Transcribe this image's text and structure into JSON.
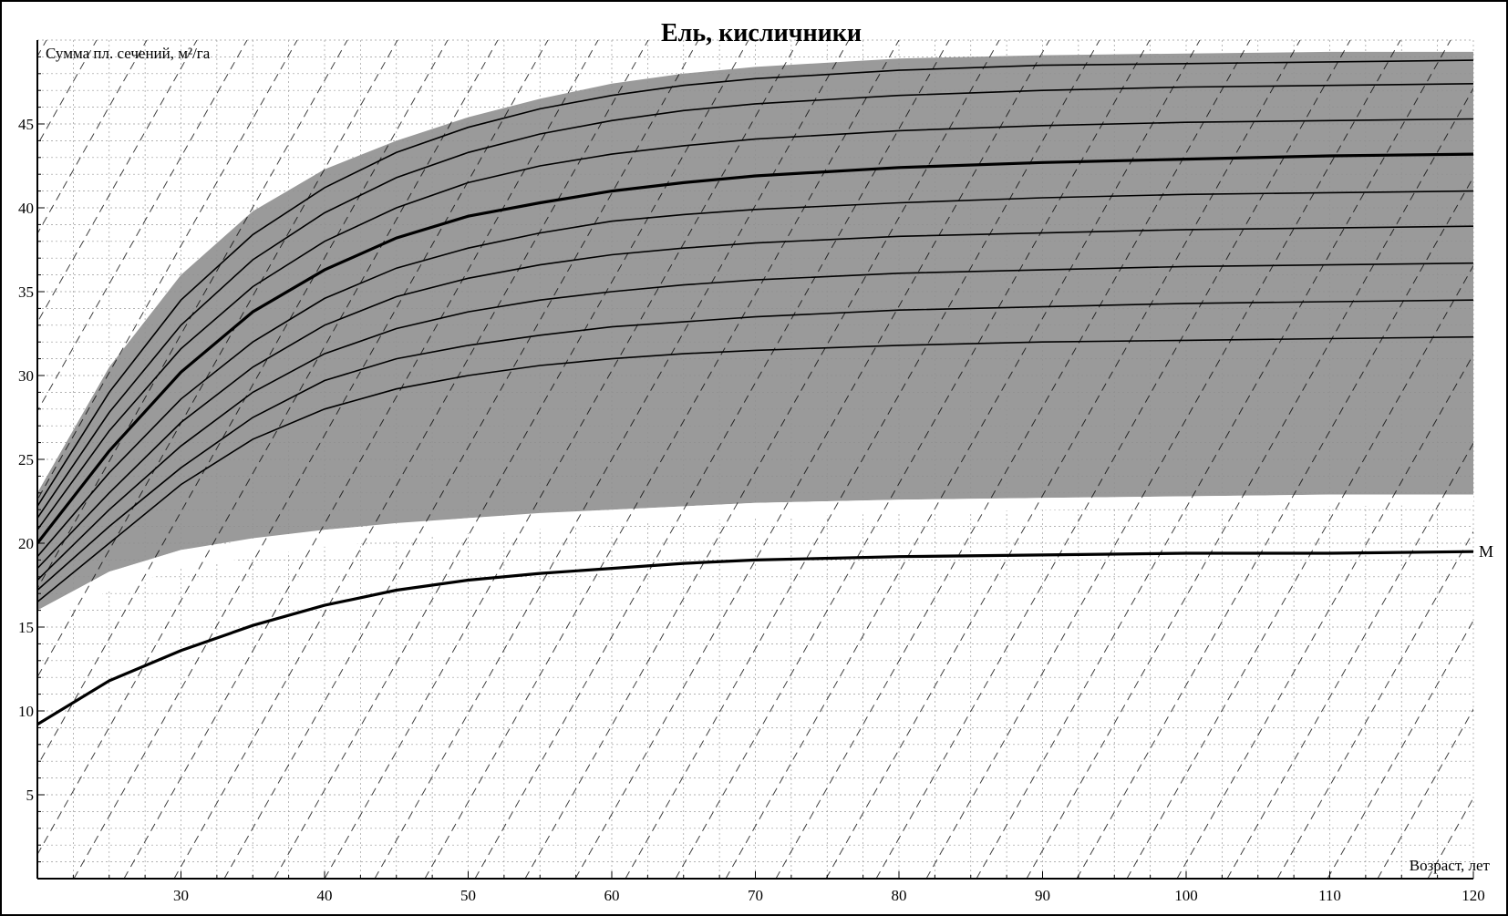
{
  "chart_data": {
    "type": "line",
    "title": "Ель, кисличники",
    "xlabel": "Возраст, лет",
    "ylabel": "Сумма пл. сечений, м²/га",
    "xlim": [
      20,
      120
    ],
    "ylim": [
      0,
      50
    ],
    "x_ticks": [
      30,
      40,
      50,
      60,
      70,
      80,
      90,
      100,
      110,
      120
    ],
    "y_ticks": [
      5,
      10,
      15,
      20,
      25,
      30,
      35,
      40,
      45
    ],
    "grid": "on",
    "colors": {
      "band": "#8f8f8f",
      "line": "#000000",
      "grid": "#9a9a9a",
      "background": "#ffffff"
    },
    "band": {
      "x": [
        20,
        25,
        30,
        35,
        40,
        45,
        50,
        55,
        60,
        65,
        70,
        80,
        90,
        100,
        110,
        120
      ],
      "upper": [
        23.0,
        30.5,
        36.0,
        39.8,
        42.3,
        44.0,
        45.4,
        46.5,
        47.4,
        48.0,
        48.4,
        48.9,
        49.1,
        49.2,
        49.3,
        49.3
      ],
      "lower": [
        16.0,
        18.3,
        19.6,
        20.3,
        20.8,
        21.2,
        21.5,
        21.8,
        22.0,
        22.2,
        22.4,
        22.6,
        22.7,
        22.8,
        22.9,
        22.9
      ]
    },
    "minimum_zone": {
      "x": [
        20,
        25,
        30,
        40,
        50,
        60,
        70,
        80,
        90,
        100,
        110,
        120
      ],
      "upper": [
        16.0,
        18.3,
        19.6,
        20.8,
        21.5,
        22.0,
        22.4,
        22.6,
        22.7,
        22.8,
        22.9,
        22.9
      ],
      "lower": [
        15.0,
        17.2,
        18.5,
        19.8,
        20.6,
        21.1,
        21.5,
        21.8,
        22.0,
        22.1,
        22.2,
        22.3
      ]
    },
    "series": [
      {
        "x": [
          20,
          25,
          30,
          35,
          40,
          45,
          50,
          55,
          60,
          65,
          70,
          80,
          90,
          100,
          110,
          120
        ],
        "values": [
          9.2,
          11.8,
          13.6,
          15.1,
          16.3,
          17.2,
          17.8,
          18.2,
          18.5,
          18.8,
          19.0,
          19.2,
          19.3,
          19.4,
          19.4,
          19.5
        ],
        "style": "bold",
        "end_label": "M"
      },
      {
        "x": [
          20,
          25,
          30,
          35,
          40,
          45,
          50,
          55,
          60,
          65,
          70,
          80,
          90,
          100,
          110,
          120
        ],
        "values": [
          16.5,
          20.0,
          23.5,
          26.2,
          28.0,
          29.2,
          30.0,
          30.6,
          31.0,
          31.3,
          31.5,
          31.8,
          32.0,
          32.1,
          32.2,
          32.3
        ],
        "style": "thin"
      },
      {
        "x": [
          20,
          25,
          30,
          35,
          40,
          45,
          50,
          55,
          60,
          65,
          70,
          80,
          90,
          100,
          110,
          120
        ],
        "values": [
          17.2,
          21.0,
          24.5,
          27.5,
          29.7,
          31.0,
          31.8,
          32.4,
          32.9,
          33.2,
          33.5,
          33.9,
          34.1,
          34.3,
          34.4,
          34.5
        ],
        "style": "thin"
      },
      {
        "x": [
          20,
          25,
          30,
          35,
          40,
          45,
          50,
          55,
          60,
          65,
          70,
          80,
          90,
          100,
          110,
          120
        ],
        "values": [
          17.8,
          22.0,
          25.8,
          29.0,
          31.3,
          32.8,
          33.8,
          34.5,
          35.0,
          35.4,
          35.7,
          36.1,
          36.3,
          36.5,
          36.6,
          36.7
        ],
        "style": "thin"
      },
      {
        "x": [
          20,
          25,
          30,
          35,
          40,
          45,
          50,
          55,
          60,
          65,
          70,
          80,
          90,
          100,
          110,
          120
        ],
        "values": [
          18.5,
          23.0,
          27.2,
          30.5,
          33.0,
          34.7,
          35.8,
          36.6,
          37.2,
          37.6,
          37.9,
          38.3,
          38.5,
          38.7,
          38.8,
          38.9
        ],
        "style": "thin"
      },
      {
        "x": [
          20,
          25,
          30,
          35,
          40,
          45,
          50,
          55,
          60,
          65,
          70,
          80,
          90,
          100,
          110,
          120
        ],
        "values": [
          19.2,
          24.2,
          28.6,
          32.0,
          34.6,
          36.4,
          37.6,
          38.5,
          39.2,
          39.6,
          39.9,
          40.3,
          40.6,
          40.8,
          40.9,
          41.0
        ],
        "style": "thin"
      },
      {
        "x": [
          20,
          25,
          30,
          35,
          40,
          45,
          50,
          55,
          60,
          65,
          70,
          80,
          90,
          100,
          110,
          120
        ],
        "values": [
          20.0,
          25.5,
          30.2,
          33.8,
          36.3,
          38.2,
          39.5,
          40.3,
          41.0,
          41.5,
          41.9,
          42.4,
          42.7,
          42.9,
          43.1,
          43.2
        ],
        "style": "bold"
      },
      {
        "x": [
          20,
          25,
          30,
          35,
          40,
          45,
          50,
          55,
          60,
          65,
          70,
          80,
          90,
          100,
          110,
          120
        ],
        "values": [
          20.8,
          26.7,
          31.6,
          35.3,
          38.0,
          40.0,
          41.5,
          42.5,
          43.2,
          43.7,
          44.1,
          44.6,
          44.9,
          45.1,
          45.2,
          45.3
        ],
        "style": "thin"
      },
      {
        "x": [
          20,
          25,
          30,
          35,
          40,
          45,
          50,
          55,
          60,
          65,
          70,
          80,
          90,
          100,
          110,
          120
        ],
        "values": [
          21.5,
          27.8,
          33.0,
          36.9,
          39.7,
          41.8,
          43.3,
          44.4,
          45.2,
          45.8,
          46.2,
          46.7,
          47.0,
          47.2,
          47.3,
          47.4
        ],
        "style": "thin"
      },
      {
        "x": [
          20,
          25,
          30,
          35,
          40,
          45,
          50,
          55,
          60,
          65,
          70,
          80,
          90,
          100,
          110,
          120
        ],
        "values": [
          22.2,
          29.0,
          34.5,
          38.4,
          41.2,
          43.3,
          44.8,
          45.9,
          46.7,
          47.3,
          47.7,
          48.2,
          48.5,
          48.6,
          48.7,
          48.8
        ],
        "style": "thin"
      }
    ],
    "diagonal_hatching": "dashed"
  }
}
